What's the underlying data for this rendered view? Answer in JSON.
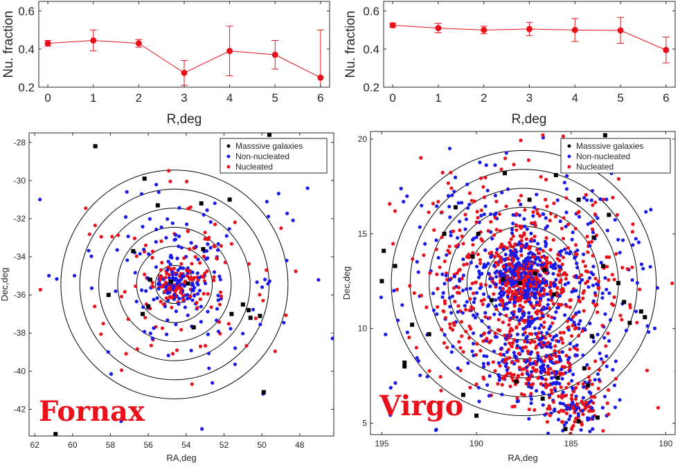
{
  "figure": {
    "colors": {
      "red": "#e8101a",
      "blue": "#1a1ae8",
      "black": "#000000",
      "axis": "#262626"
    }
  },
  "chart_data": [
    {
      "id": "fornax-fraction",
      "type": "line",
      "xlabel": "R,deg",
      "ylabel": "Nu. fraction",
      "xlim": [
        -0.2,
        6.2
      ],
      "ylim": [
        0.2,
        0.65
      ],
      "xticks": [
        "0",
        "1",
        "2",
        "3",
        "4",
        "5",
        "6"
      ],
      "yticks": [
        "0.2",
        "0.4",
        "0.6"
      ],
      "x": [
        0,
        1,
        2,
        3,
        4,
        5,
        6
      ],
      "y": [
        0.43,
        0.445,
        0.43,
        0.275,
        0.39,
        0.37,
        0.25
      ],
      "err_low": [
        0.015,
        0.055,
        0.02,
        0.065,
        0.13,
        0.075,
        0.05
      ],
      "err_high": [
        0.015,
        0.055,
        0.02,
        0.065,
        0.13,
        0.075,
        0.25
      ]
    },
    {
      "id": "virgo-fraction",
      "type": "line",
      "xlabel": "R,deg",
      "ylabel": "Nu. fraction",
      "xlim": [
        -0.2,
        6.2
      ],
      "ylim": [
        0.2,
        0.65
      ],
      "xticks": [
        "0",
        "1",
        "2",
        "3",
        "4",
        "5",
        "6"
      ],
      "yticks": [
        "0.2",
        "0.4",
        "0.6"
      ],
      "x": [
        0,
        1,
        2,
        3,
        4,
        5,
        6
      ],
      "y": [
        0.525,
        0.51,
        0.5,
        0.505,
        0.5,
        0.498,
        0.395
      ],
      "err_low": [
        0.012,
        0.025,
        0.02,
        0.035,
        0.06,
        0.068,
        0.068
      ],
      "err_high": [
        0.012,
        0.025,
        0.02,
        0.035,
        0.06,
        0.068,
        0.068
      ]
    },
    {
      "id": "fornax-map",
      "type": "scatter",
      "title": "Fornax",
      "xlabel": "RA,deg",
      "ylabel": "Dec,deg",
      "xlim": [
        62.3,
        46.2
      ],
      "ylim": [
        -43.4,
        -27.5
      ],
      "xticks": [
        "62",
        "60",
        "58",
        "56",
        "54",
        "52",
        "50",
        "48"
      ],
      "yticks": [
        "-42",
        "-40",
        "-38",
        "-36",
        "-34",
        "-32",
        "-30",
        "-28"
      ],
      "center": [
        54.62,
        -35.45
      ],
      "circle_radii_deg": [
        1,
        2,
        3,
        4,
        5,
        6
      ],
      "legend": [
        "Masssive galaxies",
        "Non-nucleated",
        "Nucleated"
      ],
      "massive_galaxies": [
        [
          58.8,
          -28.2
        ],
        [
          56.2,
          -29.9
        ],
        [
          60.9,
          -43.3
        ],
        [
          49.6,
          -27.6
        ],
        [
          55.5,
          -31.3
        ],
        [
          53.2,
          -31.2
        ],
        [
          51.7,
          -31.0
        ],
        [
          53.1,
          -33.6
        ],
        [
          56.8,
          -33.7
        ],
        [
          58.1,
          -36.0
        ],
        [
          55.9,
          -35.2
        ],
        [
          56.0,
          -36.6
        ],
        [
          56.3,
          -37.0
        ],
        [
          53.6,
          -37.7
        ],
        [
          51.0,
          -36.5
        ],
        [
          50.7,
          -36.8
        ],
        [
          51.6,
          -37.0
        ],
        [
          50.6,
          -37.2
        ],
        [
          50.1,
          -37.1
        ],
        [
          49.9,
          -41.1
        ],
        [
          53.9,
          -35.4
        ],
        [
          54.8,
          -35.3
        ]
      ],
      "summary_counts": {
        "non_nucleated": 230,
        "nucleated": 180
      }
    },
    {
      "id": "virgo-map",
      "type": "scatter",
      "title": "Virgo",
      "xlabel": "RA,deg",
      "ylabel": "Dec,deg",
      "xlim": [
        195.6,
        179.5
      ],
      "ylim": [
        4.4,
        20.4
      ],
      "xticks": [
        "195",
        "190",
        "185",
        "180"
      ],
      "yticks": [
        "5",
        "10",
        "15",
        "20"
      ],
      "center": [
        187.5,
        12.4
      ],
      "circle_radii_deg": [
        2,
        3,
        4,
        5,
        6,
        7
      ],
      "legend": [
        "Masssive galaxies",
        "Non-nucleated",
        "Nucleated"
      ],
      "massive_galaxies": [
        [
          183.2,
          20.2
        ],
        [
          194.9,
          14.1
        ],
        [
          195.0,
          12.5
        ],
        [
          194.3,
          13.3
        ],
        [
          193.4,
          10.2
        ],
        [
          192.5,
          9.7
        ],
        [
          193.8,
          8.2
        ],
        [
          193.8,
          8.0
        ],
        [
          191.7,
          15.0
        ],
        [
          191.1,
          16.4
        ],
        [
          189.9,
          15.0
        ],
        [
          188.5,
          18.2
        ],
        [
          187.2,
          16.8
        ],
        [
          185.8,
          18.1
        ],
        [
          184.6,
          16.8
        ],
        [
          183.8,
          14.8
        ],
        [
          183.3,
          13.3
        ],
        [
          183.0,
          16.0
        ],
        [
          182.5,
          12.4
        ],
        [
          182.2,
          11.4
        ],
        [
          181.3,
          10.9
        ],
        [
          181.1,
          10.6
        ],
        [
          181.9,
          10.3
        ],
        [
          190.7,
          6.5
        ],
        [
          190.0,
          5.4
        ],
        [
          187.9,
          7.2
        ],
        [
          186.5,
          6.3
        ],
        [
          185.7,
          7.4
        ],
        [
          184.3,
          7.9
        ],
        [
          184.1,
          7.0
        ],
        [
          184.6,
          5.1
        ],
        [
          185.3,
          4.7
        ],
        [
          183.6,
          5.3
        ],
        [
          188.6,
          12.6
        ],
        [
          187.7,
          12.4
        ],
        [
          186.9,
          12.9
        ],
        [
          186.4,
          13.1
        ],
        [
          185.9,
          11.8
        ],
        [
          189.2,
          11.5
        ],
        [
          190.2,
          13.8
        ],
        [
          183.9,
          9.6
        ]
      ],
      "summary_counts": {
        "non_nucleated": 900,
        "nucleated": 900
      }
    }
  ]
}
